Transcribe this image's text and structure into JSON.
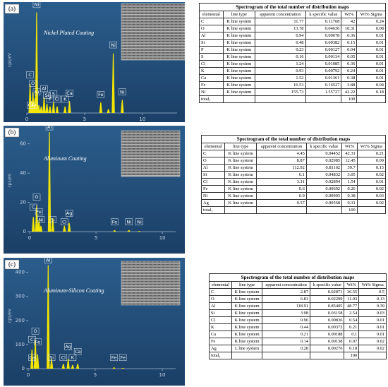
{
  "chart_data": [
    {
      "type": "spectrum",
      "panel": "(a)",
      "title": "Nickel Plated Coating",
      "y_label": "cps/eV",
      "color": "#f2e600",
      "x": [
        0.28,
        0.4,
        0.53,
        0.7,
        0.85,
        1.04,
        1.25,
        1.49,
        1.74,
        2.01,
        2.31,
        2.62,
        3.31,
        3.69,
        6.4,
        7.06,
        7.48,
        8.26
      ],
      "values": [
        2.2,
        0.9,
        1.6,
        1.1,
        7.6,
        0.6,
        0.5,
        1.2,
        0.7,
        0.5,
        0.8,
        0.5,
        0.5,
        0.9,
        0.8,
        0.3,
        4.5,
        1.0
      ],
      "xlim": [
        0,
        13
      ],
      "xticks": [
        0,
        5,
        10
      ],
      "ylim": [
        0,
        8
      ],
      "annotations": [
        {
          "text": "Ni",
          "x": 0.85,
          "y": 7.9
        },
        {
          "text": "C",
          "x": 0.28,
          "y": 2.6
        },
        {
          "text": "O",
          "x": 0.53,
          "y": 1.95
        },
        {
          "text": "Ni",
          "x": 0.85,
          "y": 1.3
        },
        {
          "text": "Al",
          "x": 1.49,
          "y": 1.55
        },
        {
          "text": "Si",
          "x": 1.74,
          "y": 1.05
        },
        {
          "text": "S",
          "x": 2.31,
          "y": 1.15
        },
        {
          "text": "P",
          "x": 2.01,
          "y": 0.75
        },
        {
          "text": "Cl",
          "x": 2.62,
          "y": 0.75
        },
        {
          "text": "K",
          "x": 3.31,
          "y": 0.75
        },
        {
          "text": "Ca",
          "x": 3.69,
          "y": 1.2
        },
        {
          "text": "Ca",
          "x": 0.35,
          "y": 0.3
        },
        {
          "text": "Fe",
          "x": 0.62,
          "y": 0.3
        },
        {
          "text": "Fe",
          "x": 6.4,
          "y": 1.1
        },
        {
          "text": "Ni",
          "x": 7.48,
          "y": 4.85
        },
        {
          "text": "Ni",
          "x": 8.26,
          "y": 1.3
        }
      ]
    },
    {
      "type": "spectrum",
      "panel": "(b)",
      "title": "Aluminum Coating",
      "y_label": "cps/eV",
      "color": "#f2e600",
      "x": [
        0.28,
        0.53,
        0.7,
        0.85,
        1.49,
        1.74,
        2.62,
        2.98,
        6.4,
        7.48,
        8.26
      ],
      "values": [
        10,
        18,
        8,
        4,
        68,
        9,
        4,
        6,
        1,
        1,
        0.5
      ],
      "xlim": [
        0,
        11
      ],
      "xticks": [
        0,
        5,
        10
      ],
      "ylim": [
        0,
        70
      ],
      "yticks": [
        0,
        20,
        40,
        60
      ],
      "annotations": [
        {
          "text": "Al",
          "x": 1.49,
          "y": 69
        },
        {
          "text": "O",
          "x": 0.53,
          "y": 21
        },
        {
          "text": "C",
          "x": 0.28,
          "y": 14
        },
        {
          "text": "Fe",
          "x": 0.7,
          "y": 11
        },
        {
          "text": "Ni",
          "x": 0.85,
          "y": 5.5
        },
        {
          "text": "Si",
          "x": 1.74,
          "y": 5.5
        },
        {
          "text": "Ag",
          "x": 2.98,
          "y": 10
        },
        {
          "text": "Cl",
          "x": 2.62,
          "y": 4
        },
        {
          "text": "Fe",
          "x": 6.4,
          "y": 4
        },
        {
          "text": "Ni",
          "x": 7.48,
          "y": 4
        },
        {
          "text": "Ni",
          "x": 8.26,
          "y": 4
        }
      ]
    },
    {
      "type": "spectrum",
      "panel": "(c)",
      "title": "Aluminum-Silicon Coating",
      "y_label": "cps/eV",
      "color": "#f2e600",
      "x": [
        0.28,
        0.53,
        0.7,
        1.49,
        1.74,
        2.62,
        2.98,
        3.31,
        3.69,
        6.4,
        7.06
      ],
      "values": [
        80,
        120,
        60,
        430,
        40,
        20,
        40,
        15,
        20,
        5,
        3
      ],
      "xlim": [
        0,
        11
      ],
      "xticks": [
        0,
        5,
        10
      ],
      "ylim": [
        0,
        440
      ],
      "yticks": [
        0,
        100,
        200,
        300,
        400
      ],
      "annotations": [
        {
          "text": "Al",
          "x": 1.49,
          "y": 435
        },
        {
          "text": "O",
          "x": 0.53,
          "y": 140
        },
        {
          "text": "C",
          "x": 0.28,
          "y": 105
        },
        {
          "text": "Fe",
          "x": 0.7,
          "y": 95
        },
        {
          "text": "Ca",
          "x": 0.3,
          "y": 30
        },
        {
          "text": "Si",
          "x": 1.74,
          "y": 30
        },
        {
          "text": "Cl",
          "x": 2.62,
          "y": 30
        },
        {
          "text": "Ag",
          "x": 2.98,
          "y": 75
        },
        {
          "text": "K",
          "x": 3.31,
          "y": 30
        },
        {
          "text": "Ca",
          "x": 3.69,
          "y": 55
        },
        {
          "text": "Fe",
          "x": 6.4,
          "y": 30
        },
        {
          "text": "Fe",
          "x": 7.06,
          "y": 30
        }
      ]
    }
  ],
  "tables": [
    {
      "title": "Spectrogram of the total number of distribution maps",
      "header": [
        "elemental",
        "line type",
        "apparent concentration",
        "k specific value",
        "Wt%",
        "Wt% Sigma"
      ],
      "rows": [
        [
          "C",
          "K line system",
          "11.77",
          "0.11768",
          "42",
          "0.24"
        ],
        [
          "O",
          "K line system",
          "13.78",
          "0.04636",
          "10.31",
          "0.08"
        ],
        [
          "Al",
          "K line system",
          "0.94",
          "0.00678",
          "0.36",
          "0.01"
        ],
        [
          "Si",
          "K line system",
          "0.48",
          "0.00382",
          "0.15",
          "0.01"
        ],
        [
          "P",
          "K line system",
          "0.23",
          "0.00127",
          "0.04",
          "0.01"
        ],
        [
          "S",
          "K line system",
          "0.16",
          "0.00134",
          "0.05",
          "0.01"
        ],
        [
          "Cl",
          "K line system",
          "1.24",
          "0.01085",
          "0.36",
          "0.01"
        ],
        [
          "K",
          "K line system",
          "0.93",
          "0.00792",
          "0.24",
          "0.01"
        ],
        [
          "Ca",
          "K line system",
          "1.52",
          "0.01361",
          "0.38",
          "0.01"
        ],
        [
          "Fe",
          "K line system",
          "16.53",
          "0.16527",
          "3.88",
          "0.04"
        ],
        [
          "Ni",
          "K line system",
          "155.73",
          "1.55727",
          "42.22",
          "0.18"
        ],
        [
          "total₁",
          "",
          "",
          "",
          "100",
          ""
        ]
      ]
    },
    {
      "title": "Spectrogram of the total number of distribution maps",
      "header": [
        "elemental",
        "line type",
        "apparent concentration",
        "k specific value",
        "Wt%",
        "Wt% Sigma"
      ],
      "rows": [
        [
          "C",
          "K line system",
          "4.45",
          "0.04452",
          "42.31",
          "0.21"
        ],
        [
          "O",
          "K line system",
          "8.87",
          "0.02985",
          "12.45",
          "0.09"
        ],
        [
          "Al",
          "K line system",
          "112.92",
          "0.81102",
          "39.7",
          "0.15"
        ],
        [
          "Si",
          "K line system",
          "6.1",
          "0.04832",
          "3.05",
          "0.02"
        ],
        [
          "Cl",
          "K line system",
          "3.31",
          "0.02894",
          "1.54",
          "0.01"
        ],
        [
          "Fe",
          "K line system",
          "0.6",
          "0.00602",
          "0.26",
          "0.02"
        ],
        [
          "Ni",
          "K line system",
          "0.9",
          "0.00903",
          "0.38",
          "0.03"
        ],
        [
          "Ag",
          "K line system",
          "0.57",
          "0.00568",
          "0.31",
          "0.02"
        ],
        [
          "total₁",
          "",
          "",
          "",
          "100",
          ""
        ]
      ]
    },
    {
      "title": "Spectrogram of the total number of distribution maps",
      "header": [
        "elemental",
        "line type",
        "apparent concentration",
        "k specific value",
        "Wt%",
        "Wt% Sigma"
      ],
      "rows": [
        [
          "C",
          "K line system",
          "2.87",
          "0.02871",
          "36.55",
          "0.5"
        ],
        [
          "O",
          "K line system",
          "6.83",
          "0.02299",
          "11.03",
          "0.13"
        ],
        [
          "Al",
          "K line system",
          "118.91",
          "0.85405",
          "48.77",
          "0.39"
        ],
        [
          "Si",
          "K line system",
          "3.98",
          "0.03158",
          "2.54",
          "0.03"
        ],
        [
          "Cl",
          "K line system",
          "0.96",
          "0.00836",
          "0.54",
          "0.01"
        ],
        [
          "K",
          "K line system",
          "0.44",
          "0.00373",
          "0.21",
          "0.01"
        ],
        [
          "Ca",
          "K line system",
          "0.21",
          "0.00188",
          "0.1",
          "0.01"
        ],
        [
          "Fe",
          "K line system",
          "0.14",
          "0.00138",
          "0.07",
          "0.02"
        ],
        [
          "Ag",
          "L line system",
          "0.28",
          "0.00276",
          "0.18",
          "0.02"
        ],
        [
          "total₁",
          "",
          "",
          "",
          "100",
          ""
        ]
      ]
    }
  ]
}
